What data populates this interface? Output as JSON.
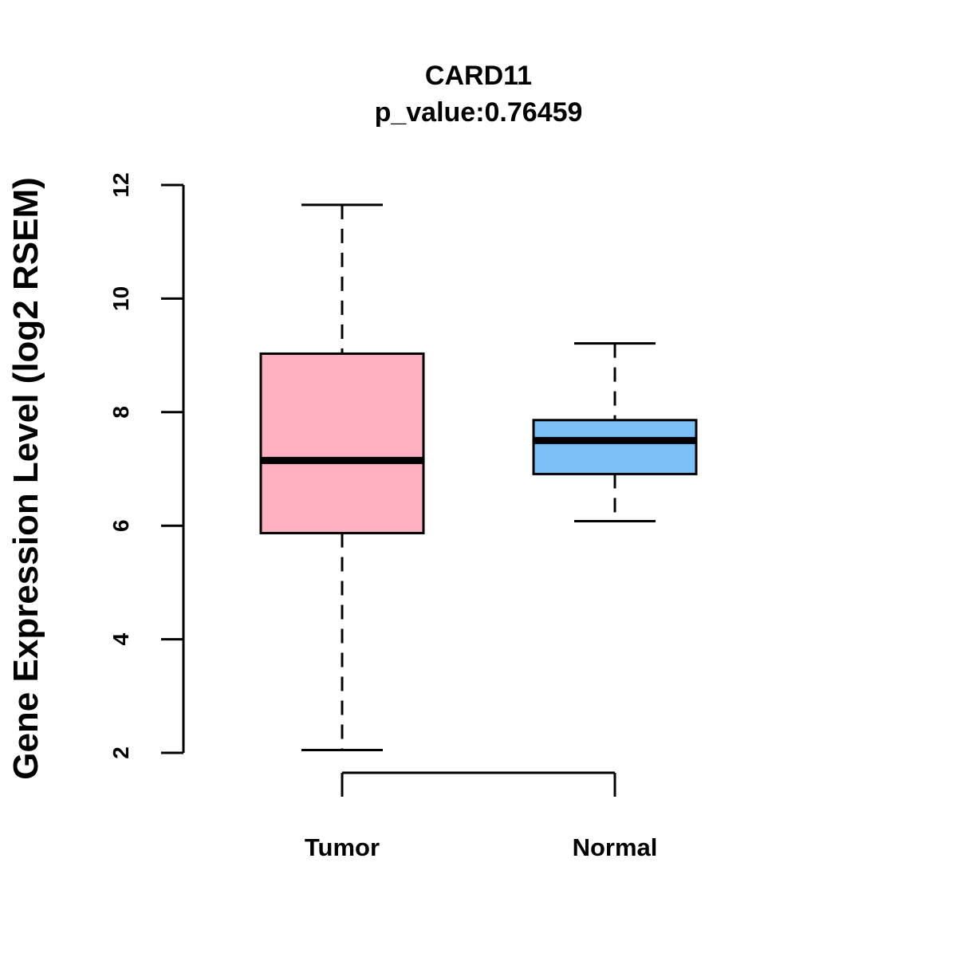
{
  "chart_data": {
    "type": "box",
    "title": "CARD11",
    "subtitle": "p_value:0.76459",
    "xlabel": "",
    "ylabel": "Gene Expression Level (log2 RSEM)",
    "ylim": [
      2,
      12
    ],
    "yticks": [
      "2",
      "4",
      "6",
      "8",
      "10",
      "12"
    ],
    "grid": false,
    "categories": [
      "Tumor",
      "Normal"
    ],
    "boxes": [
      {
        "category": "Tumor",
        "min": 2.05,
        "q1": 5.87,
        "median": 7.15,
        "q3": 9.03,
        "max": 11.65,
        "color": "#ffb1c1"
      },
      {
        "category": "Normal",
        "min": 6.08,
        "q1": 6.91,
        "median": 7.5,
        "q3": 7.86,
        "max": 9.21,
        "color": "#7cc0f8"
      }
    ]
  }
}
